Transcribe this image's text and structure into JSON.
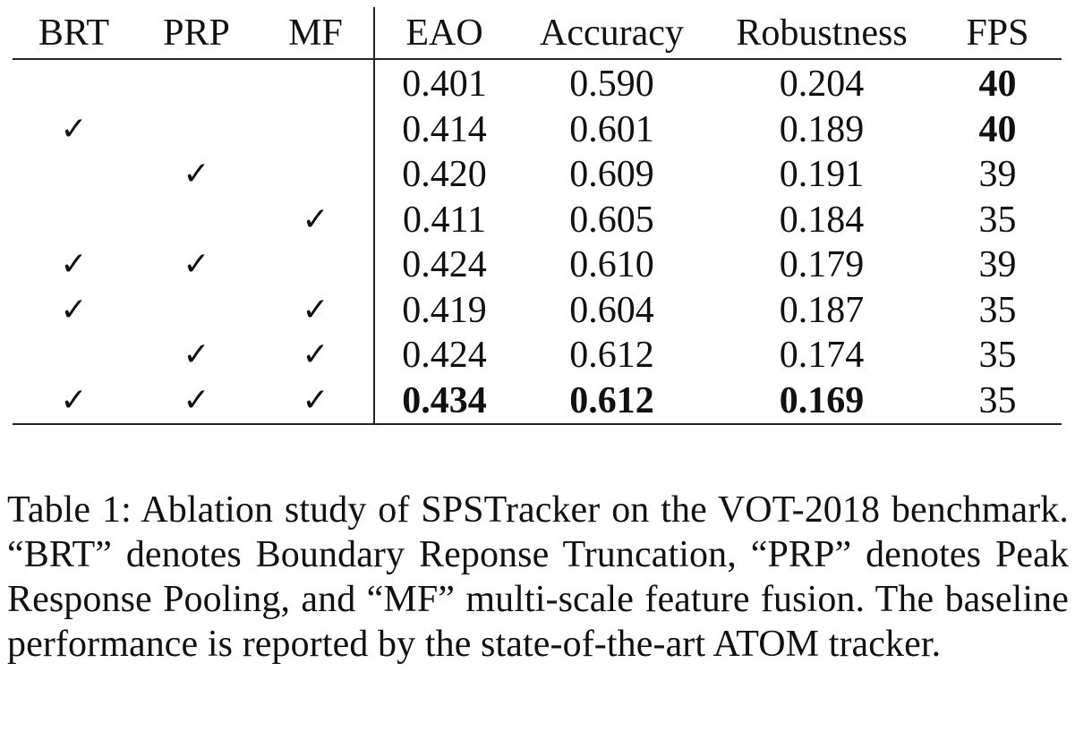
{
  "table": {
    "headers": [
      "BRT",
      "PRP",
      "MF",
      "EAO",
      "Accuracy",
      "Robustness",
      "FPS"
    ],
    "check_symbol": "✓",
    "rows": [
      {
        "brt": false,
        "prp": false,
        "mf": false,
        "eao": "0.401",
        "accuracy": "0.590",
        "robustness": "0.204",
        "fps": "40"
      },
      {
        "brt": true,
        "prp": false,
        "mf": false,
        "eao": "0.414",
        "accuracy": "0.601",
        "robustness": "0.189",
        "fps": "40"
      },
      {
        "brt": false,
        "prp": true,
        "mf": false,
        "eao": "0.420",
        "accuracy": "0.609",
        "robustness": "0.191",
        "fps": "39"
      },
      {
        "brt": false,
        "prp": false,
        "mf": true,
        "eao": "0.411",
        "accuracy": "0.605",
        "robustness": "0.184",
        "fps": "35"
      },
      {
        "brt": true,
        "prp": true,
        "mf": false,
        "eao": "0.424",
        "accuracy": "0.610",
        "robustness": "0.179",
        "fps": "39"
      },
      {
        "brt": true,
        "prp": false,
        "mf": true,
        "eao": "0.419",
        "accuracy": "0.604",
        "robustness": "0.187",
        "fps": "35"
      },
      {
        "brt": false,
        "prp": true,
        "mf": true,
        "eao": "0.424",
        "accuracy": "0.612",
        "robustness": "0.174",
        "fps": "35"
      },
      {
        "brt": true,
        "prp": true,
        "mf": true,
        "eao": "0.434",
        "accuracy": "0.612",
        "robustness": "0.169",
        "fps": "35"
      }
    ],
    "bold_cells": [
      {
        "row": 0,
        "col": "fps"
      },
      {
        "row": 1,
        "col": "fps"
      },
      {
        "row": 7,
        "col": "eao"
      },
      {
        "row": 7,
        "col": "accuracy"
      },
      {
        "row": 7,
        "col": "robustness"
      }
    ]
  },
  "caption": {
    "text": "Table 1: Ablation study of SPSTracker on the VOT-2018 benchmark. “BRT” denotes Boundary Reponse Truncation, “PRP” denotes Peak Response Pooling, and “MF” multi-scale feature fusion. The baseline performance is reported by the state-of-the-art ATOM tracker."
  }
}
